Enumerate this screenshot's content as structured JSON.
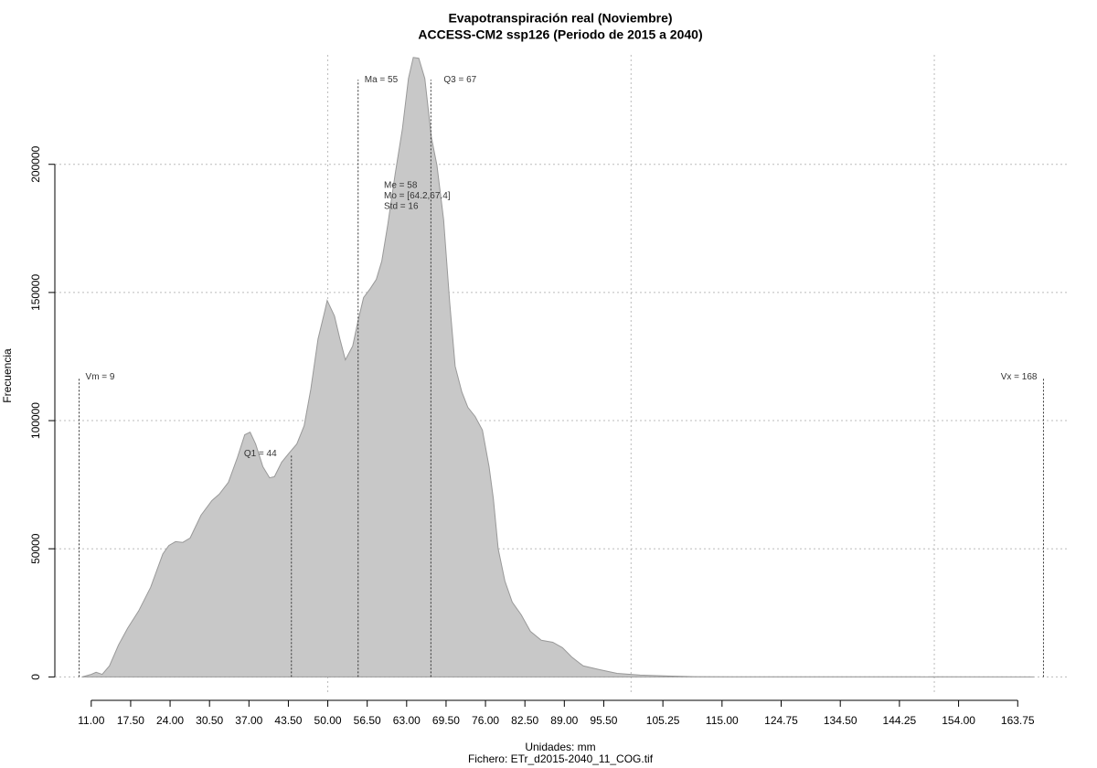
{
  "chart_data": {
    "type": "area",
    "title": "Evapotranspiración real (Noviembre)",
    "subtitle": "ACCESS-CM2 ssp126 (Periodo de 2015 a 2040)",
    "x_label": "Unidades: mm",
    "footer": "Fichero: ETr_d2015-2040_11_COG.tif",
    "y_label": "Frecuencia",
    "color": "#c8c8c8",
    "line_color": "#999999",
    "grid": true,
    "xlim": [
      5,
      172
    ],
    "ylim": [
      -7000,
      242000
    ],
    "xgrid": [
      50,
      100,
      150
    ],
    "xticks": [
      {
        "value": 11,
        "label": "11.00"
      },
      {
        "value": 17.5,
        "label": "17.50"
      },
      {
        "value": 24,
        "label": "24.00"
      },
      {
        "value": 30.5,
        "label": "30.50"
      },
      {
        "value": 37,
        "label": "37.00"
      },
      {
        "value": 43.5,
        "label": "43.50"
      },
      {
        "value": 50,
        "label": "50.00"
      },
      {
        "value": 56.5,
        "label": "56.50"
      },
      {
        "value": 63,
        "label": "63.00"
      },
      {
        "value": 69.5,
        "label": "69.50"
      },
      {
        "value": 76,
        "label": "76.00"
      },
      {
        "value": 82.5,
        "label": "82.50"
      },
      {
        "value": 89,
        "label": "89.00"
      },
      {
        "value": 95.5,
        "label": "95.50"
      },
      {
        "value": 105.25,
        "label": "105.25"
      },
      {
        "value": 115,
        "label": "115.00"
      },
      {
        "value": 124.75,
        "label": "124.75"
      },
      {
        "value": 134.5,
        "label": "134.50"
      },
      {
        "value": 144.25,
        "label": "144.25"
      },
      {
        "value": 154,
        "label": "154.00"
      },
      {
        "value": 163.75,
        "label": "163.75"
      }
    ],
    "yticks": [
      0,
      50000,
      100000,
      150000,
      200000
    ],
    "x": [
      9.5,
      11,
      11.8,
      12.8,
      14,
      15.5,
      17,
      18.8,
      20.8,
      22.8,
      23.8,
      24.9,
      26.1,
      27.3,
      29.1,
      30.9,
      32.1,
      33.6,
      35.1,
      36.3,
      37.2,
      38.1,
      39.3,
      40.4,
      41.2,
      42.4,
      43.6,
      44.9,
      46.1,
      47.2,
      48.4,
      49.5,
      49.9,
      51.1,
      52,
      52.9,
      54.1,
      55,
      55.9,
      57,
      58,
      58.9,
      59.9,
      61.1,
      62.3,
      63.3,
      64.1,
      65,
      66,
      67.1,
      68,
      69.1,
      70.1,
      71,
      72.1,
      73.1,
      74.3,
      75.5,
      76.6,
      77.3,
      78.1,
      79.2,
      80.4,
      81.9,
      83.4,
      85.2,
      87.1,
      88.7,
      90.2,
      92.1,
      94.7,
      97.7,
      101.5,
      106,
      110.5,
      116.5,
      131.6,
      146.7,
      166.3
    ],
    "y": [
      0,
      1000,
      1800,
      1000,
      4300,
      12500,
      19000,
      25700,
      35000,
      48000,
      51300,
      52800,
      52500,
      54200,
      63100,
      68800,
      71300,
      75900,
      85600,
      94500,
      95500,
      90900,
      82000,
      77700,
      78100,
      83800,
      87300,
      90900,
      98000,
      112300,
      131900,
      142600,
      146900,
      140800,
      131900,
      123700,
      129100,
      139000,
      148000,
      151500,
      155100,
      162200,
      176500,
      196100,
      213900,
      233500,
      241700,
      241400,
      233500,
      210300,
      199600,
      178300,
      146200,
      121200,
      111200,
      105200,
      101600,
      96300,
      82000,
      69500,
      49900,
      37400,
      29200,
      24200,
      17800,
      14300,
      13500,
      11400,
      7800,
      4300,
      2900,
      1400,
      700,
      350,
      100,
      50,
      20,
      10,
      0
    ],
    "markers": [
      {
        "label": "Vm = 9",
        "x": 9,
        "top": 117000
      },
      {
        "label": "Q1 = 44",
        "x": 44,
        "top": 87000
      },
      {
        "label": "Ma = 55",
        "x": 55,
        "top": 233000
      },
      {
        "label": "Q3 = 67",
        "x": 67,
        "top": 233000
      },
      {
        "label": "Vx = 168",
        "x": 168,
        "top": 117000
      }
    ],
    "stats": [
      "Me = 58",
      "Mo = [64.2,67.4]",
      "Std = 16"
    ]
  }
}
